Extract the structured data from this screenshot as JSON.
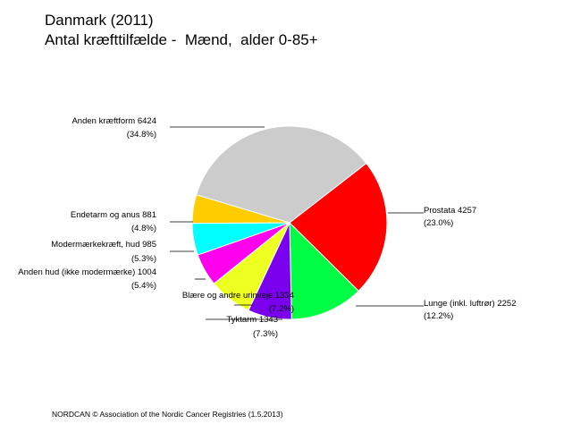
{
  "chart_data": {
    "type": "pie",
    "title": "Danmark (2011)",
    "subtitle": "Antal kræfttilfælde -  Mænd,  alder 0-85+",
    "slices": [
      {
        "name": "Prostata",
        "value": 4257,
        "percent": "(23.0%)",
        "color": "#ff0000",
        "label": "Prostata 4257"
      },
      {
        "name": "Lunge (inkl. luftrør)",
        "value": 2252,
        "percent": "(12.2%)",
        "color": "#00ff44",
        "label": "Lunge (inkl. luftrør) 2252"
      },
      {
        "name": "Tyktarm",
        "value": 1343,
        "percent": "(7.3%)",
        "color": "#7a00ee",
        "label": "Tyktarm 1343"
      },
      {
        "name": "Blære og andre urinveje",
        "value": 1334,
        "percent": "(7.2%)",
        "color": "#eeff22",
        "label": "Blære og andre urinveje 1334"
      },
      {
        "name": "Anden hud (ikke modermærke)",
        "value": 1004,
        "percent": "(5.4%)",
        "color": "#ff00ee",
        "label": "Anden hud (ikke modermærke) 1004"
      },
      {
        "name": "Modermærkekræft, hud",
        "value": 985,
        "percent": "(5.3%)",
        "color": "#00ffff",
        "label": "Modermærkekræft, hud 985"
      },
      {
        "name": "Endetarm og anus",
        "value": 881,
        "percent": "(4.8%)",
        "color": "#ffcc00",
        "label": "Endetarm og anus 881"
      },
      {
        "name": "Anden kræftform",
        "value": 6424,
        "percent": "(34.8%)",
        "color": "#cccccc",
        "label": "Anden kræftform 6424"
      }
    ]
  },
  "footer": "NORDCAN © Association of the Nordic Cancer Registries (1.5.2013)"
}
